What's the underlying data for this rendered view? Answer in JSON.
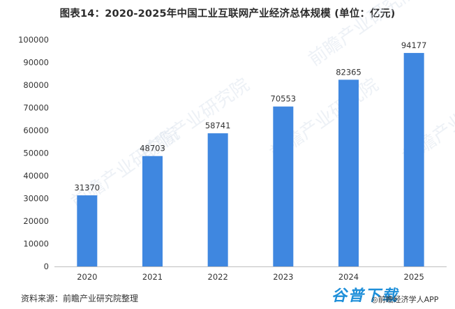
{
  "title": "图表14：2020-2025年中国工业互联网产业经济总体规模 (单位：亿元)",
  "source": "资料来源：前瞻产业研究院整理",
  "brand": {
    "logo": "谷普下载",
    "small": "◎前瞻经济学人APP"
  },
  "watermark": "前瞻产业研究院",
  "colors": {
    "bar": "#3f87e0",
    "axis": "#333333",
    "text": "#333333"
  },
  "chart_data": {
    "type": "bar",
    "title": "图表14：2020-2025年中国工业互联网产业经济总体规模 (单位：亿元)",
    "categories": [
      "2020",
      "2021",
      "2022",
      "2023",
      "2024",
      "2025"
    ],
    "values": [
      31370,
      48703,
      58741,
      70553,
      82365,
      94177
    ],
    "data_labels": [
      "31370",
      "48703",
      "58741",
      "70553",
      "82365",
      "94177"
    ],
    "y_ticks": [
      0,
      10000,
      20000,
      30000,
      40000,
      50000,
      60000,
      70000,
      80000,
      90000,
      100000
    ],
    "ylim": [
      0,
      100000
    ],
    "xlabel": "",
    "ylabel": "",
    "grid": false,
    "legend": "none"
  }
}
